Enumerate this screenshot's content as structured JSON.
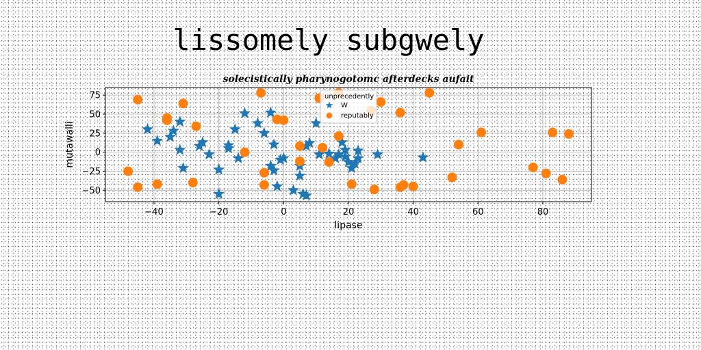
{
  "title": "lissomely subgwely",
  "chart_data": {
    "type": "scatter",
    "title": "solecistically pharynogotomc afterdecks aufait",
    "xlabel": "lipase",
    "ylabel": "mutawalli",
    "xlim": [
      -55,
      95
    ],
    "ylim": [
      -65,
      85
    ],
    "xticks": [
      -40,
      -20,
      0,
      20,
      40,
      60,
      80
    ],
    "yticks": [
      -50,
      -25,
      0,
      25,
      50,
      75
    ],
    "grid": true,
    "legend": {
      "title": "unprecedently",
      "placement": "top-center"
    },
    "series": [
      {
        "name": "W",
        "marker": "star",
        "color": "#1f77b4",
        "points": [
          [
            -42,
            30
          ],
          [
            -39,
            15
          ],
          [
            -35,
            20
          ],
          [
            -34,
            28
          ],
          [
            -32,
            40
          ],
          [
            -32,
            3
          ],
          [
            -31,
            -21
          ],
          [
            -26,
            8
          ],
          [
            -25,
            13
          ],
          [
            -23,
            -3
          ],
          [
            -20,
            -23
          ],
          [
            -20,
            -55
          ],
          [
            -17,
            9
          ],
          [
            -17,
            5
          ],
          [
            -15,
            30
          ],
          [
            -14,
            -8
          ],
          [
            -12,
            51
          ],
          [
            -8,
            38
          ],
          [
            -6,
            25
          ],
          [
            -4,
            52
          ],
          [
            -4,
            -18
          ],
          [
            -3,
            -24
          ],
          [
            -3,
            10
          ],
          [
            -2,
            -45
          ],
          [
            -1,
            -10
          ],
          [
            0,
            -8
          ],
          [
            3,
            -50
          ],
          [
            5,
            -31
          ],
          [
            5,
            -18
          ],
          [
            6,
            -55
          ],
          [
            7,
            -57
          ],
          [
            7,
            8
          ],
          [
            8,
            12
          ],
          [
            10,
            38
          ],
          [
            11,
            -3
          ],
          [
            14,
            -2
          ],
          [
            16,
            -8
          ],
          [
            17,
            -3
          ],
          [
            18,
            13
          ],
          [
            19,
            -6
          ],
          [
            19,
            3
          ],
          [
            20,
            -13
          ],
          [
            21,
            -21
          ],
          [
            22,
            -15
          ],
          [
            23,
            -8
          ],
          [
            23,
            2
          ],
          [
            29,
            -3
          ],
          [
            43,
            -7
          ]
        ]
      },
      {
        "name": "reputably",
        "marker": "circle",
        "color": "#ff7f0e",
        "points": [
          [
            -48,
            -25
          ],
          [
            -45,
            69
          ],
          [
            -45,
            -46
          ],
          [
            -39,
            -42
          ],
          [
            -36,
            45
          ],
          [
            -36,
            42
          ],
          [
            -31,
            64
          ],
          [
            -28,
            -40
          ],
          [
            -27,
            34
          ],
          [
            -12,
            0
          ],
          [
            -7,
            78
          ],
          [
            -6,
            -27
          ],
          [
            -6,
            -43
          ],
          [
            -2,
            43
          ],
          [
            0,
            42
          ],
          [
            5,
            8
          ],
          [
            5,
            -12
          ],
          [
            11,
            71
          ],
          [
            12,
            6
          ],
          [
            14,
            -13
          ],
          [
            17,
            78
          ],
          [
            17,
            21
          ],
          [
            21,
            -42
          ],
          [
            27,
            55
          ],
          [
            28,
            -49
          ],
          [
            30,
            66
          ],
          [
            36,
            52
          ],
          [
            36,
            -46
          ],
          [
            37,
            -43
          ],
          [
            40,
            -45
          ],
          [
            45,
            78
          ],
          [
            52,
            -33
          ],
          [
            54,
            10
          ],
          [
            61,
            26
          ],
          [
            77,
            -20
          ],
          [
            81,
            -28
          ],
          [
            83,
            26
          ],
          [
            86,
            -36
          ],
          [
            88,
            24
          ]
        ]
      }
    ]
  }
}
